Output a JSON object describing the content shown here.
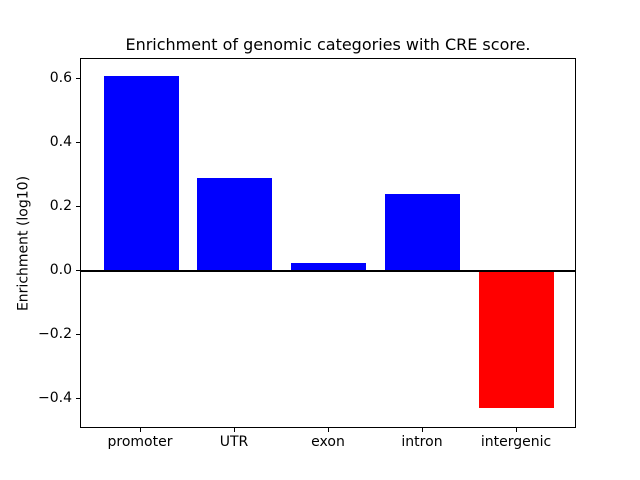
{
  "chart_data": {
    "type": "bar",
    "title": "Enrichment of genomic categories with CRE score.",
    "xlabel": "",
    "ylabel": "Enrichment (log10)",
    "categories": [
      "promoter",
      "UTR",
      "exon",
      "intron",
      "intergenic"
    ],
    "values": [
      0.61,
      0.29,
      0.025,
      0.24,
      -0.43
    ],
    "bar_colors": [
      "#0000ff",
      "#0000ff",
      "#0000ff",
      "#0000ff",
      "#ff0000"
    ],
    "bar_width": 0.8,
    "yticks": [
      0.6,
      0.4,
      0.2,
      0.0,
      -0.2,
      -0.4
    ],
    "ytick_labels": [
      "0.6",
      "0.4",
      "0.2",
      "0.0",
      "−0.2",
      "−0.4"
    ],
    "ylim": [
      -0.495,
      0.663
    ],
    "xlim": [
      -0.64,
      4.64
    ],
    "grid": false,
    "legend": false,
    "zero_line_color": "#000000",
    "frame_color": "#000000",
    "background_color": "#ffffff"
  }
}
